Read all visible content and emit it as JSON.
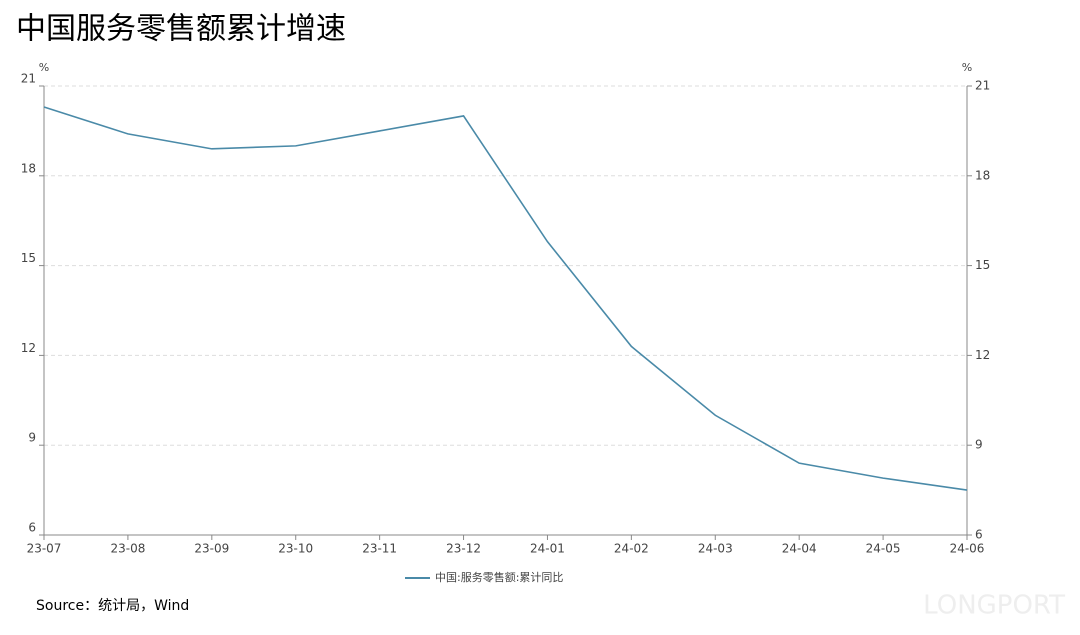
{
  "chart_data": {
    "type": "line",
    "title": "中国服务零售额累计增速",
    "y_unit": "%",
    "y2_unit": "%",
    "categories": [
      "23-07",
      "23-08",
      "23-09",
      "23-10",
      "23-11",
      "23-12",
      "24-01",
      "24-02",
      "24-03",
      "24-04",
      "24-05",
      "24-06"
    ],
    "series": [
      {
        "name": "中国:服务零售额:累计同比",
        "color": "#4a8aa8",
        "values": [
          20.3,
          19.4,
          18.9,
          19.0,
          19.5,
          20.0,
          15.8,
          12.3,
          10.0,
          8.4,
          7.9,
          7.5
        ]
      }
    ],
    "ylim": [
      6,
      21
    ],
    "yticks": [
      6,
      9,
      12,
      15,
      18,
      21
    ],
    "y2lim": [
      6,
      21
    ],
    "y2ticks": [
      6,
      9,
      12,
      15,
      18,
      21
    ],
    "grid": true,
    "legend": "bottom",
    "source": "Source：统计局，Wind",
    "watermark": "LONGPORT"
  }
}
